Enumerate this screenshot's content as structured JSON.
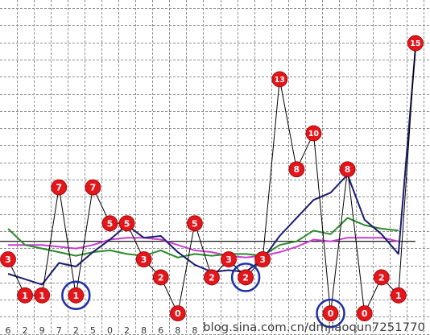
{
  "chart_data": {
    "type": "line",
    "grid": true,
    "ylim": [
      -1.2,
      17.4
    ],
    "x_tick_labels": [
      "6",
      "2",
      "9",
      "7",
      "2",
      "5",
      "0",
      "2",
      "8",
      "6",
      "8",
      "8"
    ],
    "series": [
      {
        "values": [
          3,
          1,
          1,
          7,
          1,
          7,
          5,
          5,
          3,
          2,
          0,
          5,
          2,
          3,
          2,
          3,
          13,
          8,
          10,
          0,
          8,
          0,
          2,
          1,
          15
        ],
        "color": "#000000",
        "markers": true,
        "marker_color": "#e3161c",
        "label_color": "#ffffff"
      },
      {
        "values": [
          2.2,
          1.9,
          1.6,
          2.8,
          2.6,
          3.4,
          4.1,
          4.9,
          4.2,
          4.3,
          3.4,
          2.7,
          2.3,
          2.4,
          2.3,
          3.0,
          4.3,
          5.3,
          6.3,
          6.7,
          7.7,
          5.2,
          4.4,
          3.3,
          14.7
        ],
        "color": "#1b1b6e"
      },
      {
        "values": [
          4.7,
          3.8,
          3.6,
          3.4,
          3.2,
          3.4,
          3.5,
          3.3,
          3.2,
          3.5,
          3.1,
          3.3,
          3.2,
          3.3,
          3.3,
          3.2,
          3.8,
          4.0,
          4.6,
          4.4,
          5.3,
          4.9,
          4.7,
          4.6
        ],
        "color": "#2b8a2b"
      },
      {
        "values": [
          3.8,
          3.8,
          3.8,
          3.7,
          3.6,
          3.8,
          4.1,
          4.2,
          4.2,
          4.1,
          3.8,
          3.5,
          3.4,
          3.2,
          3.1,
          3.2,
          3.4,
          3.7,
          4.1,
          4.0,
          4.2,
          4.2,
          4.2,
          4.0
        ],
        "color": "#c83fcf"
      }
    ],
    "reference_line": {
      "y": 4,
      "color": "#000000"
    },
    "highlighted_points": [
      4,
      14,
      19
    ],
    "highlight_color": "#1d2fa6"
  },
  "watermark": "blog.sina.com.cn/dmjiaoqun7251770"
}
